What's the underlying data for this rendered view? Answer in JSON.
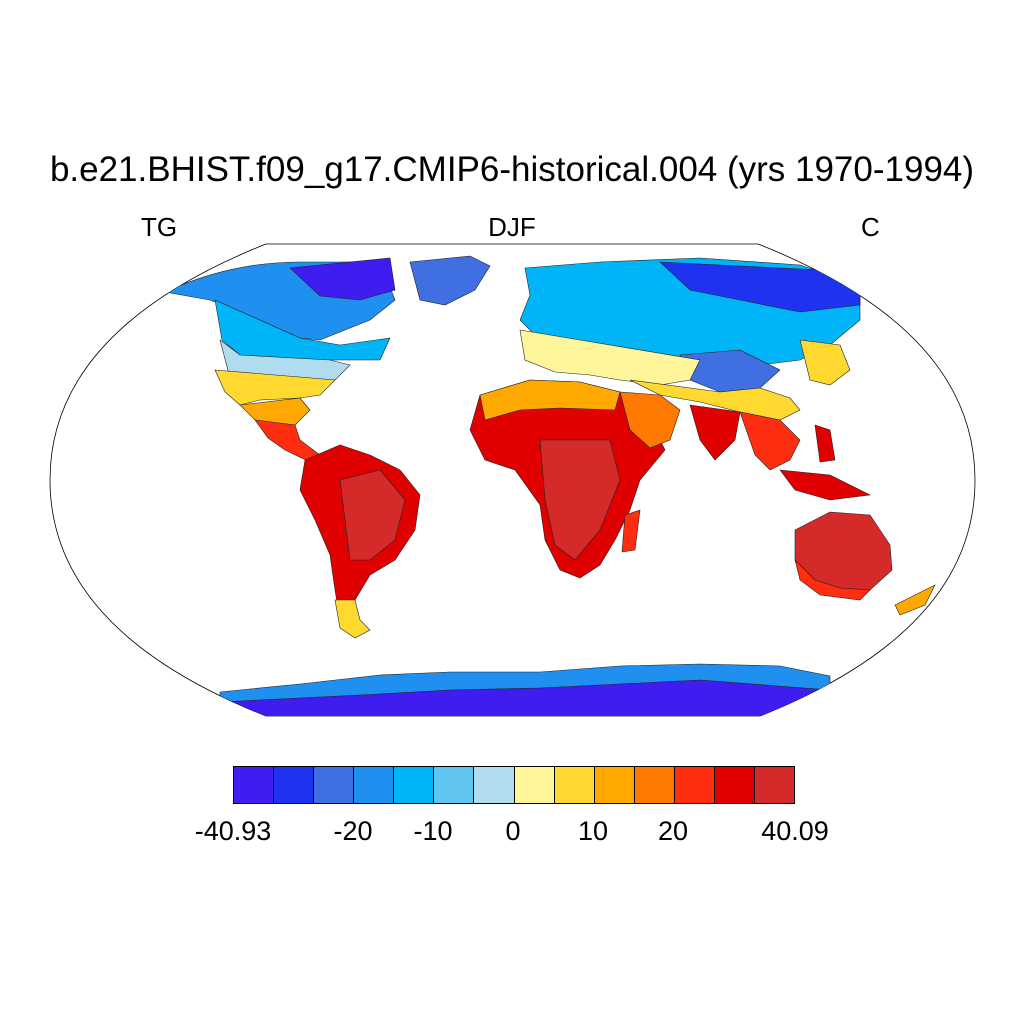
{
  "title": "b.e21.BHIST.f09_g17.CMIP6-historical.004 (yrs 1970-1994)",
  "left_label": "TG",
  "center_label": "DJF",
  "right_label": "C",
  "colorbar": {
    "colors": [
      "#3f1df0",
      "#1f32f0",
      "#3f6fe0",
      "#1f8ff0",
      "#00b4f8",
      "#5fc4f0",
      "#b0dcf0",
      "#fff59a",
      "#ffd830",
      "#ffa800",
      "#ff7800",
      "#ff2e10",
      "#e00000",
      "#d42a2a"
    ],
    "labels": [
      "-40.93",
      "-20",
      "-10",
      "0",
      "10",
      "20",
      "40.09"
    ]
  }
}
